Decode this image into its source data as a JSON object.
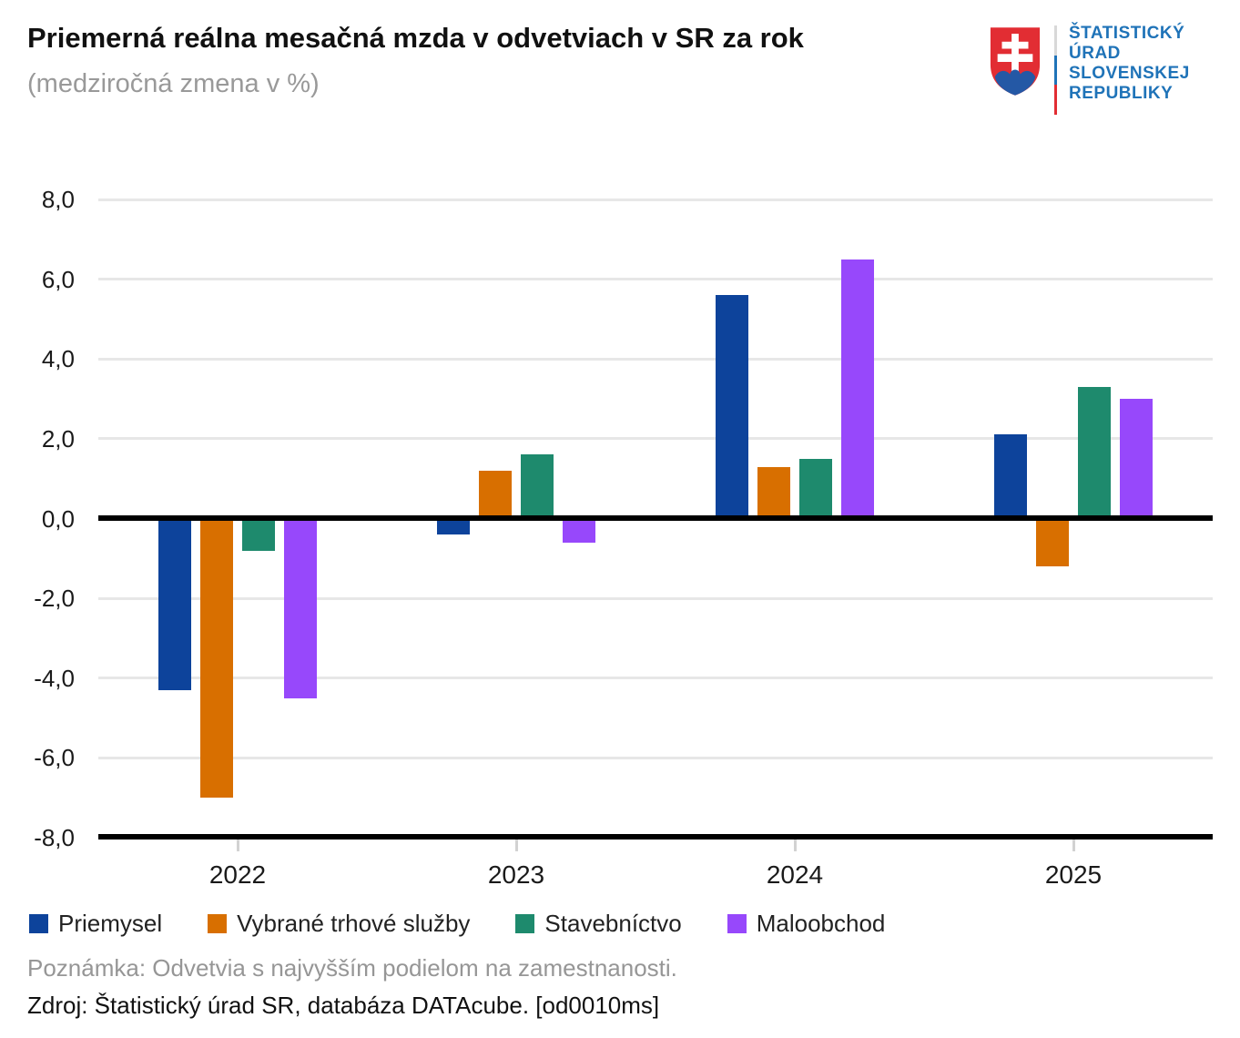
{
  "header": {
    "title": "Priemerná reálna mesačná mzda v odvetviach v SR za rok",
    "subtitle": "(medziročná zmena v %)",
    "logo": {
      "text_lines": [
        "ŠTATISTICKÝ",
        "ÚRAD",
        "SLOVENSKEJ",
        "REPUBLIKY"
      ],
      "text_color": "#1f73b8",
      "shield_red": "#e22d33",
      "hill_blue": "#2458a5",
      "cross_white": "#ffffff",
      "separator_colors": [
        "#d8d8d8",
        "#1f73b8",
        "#e22d33"
      ]
    }
  },
  "chart_data": {
    "type": "bar",
    "title": "Priemerná reálna mesačná mzda v odvetviach v SR za rok (medziročná zmena v %)",
    "categories": [
      "2022",
      "2023",
      "2024",
      "2025"
    ],
    "series": [
      {
        "name": "Priemysel",
        "slug": "priemysel",
        "color": "#0d439b",
        "values": [
          -4.3,
          -0.4,
          5.6,
          2.1
        ]
      },
      {
        "name": "Vybrané trhové služby",
        "slug": "vybrane-trhove-sluzby",
        "color": "#d86f00",
        "values": [
          -7.0,
          1.2,
          1.3,
          -1.2
        ]
      },
      {
        "name": "Stavebníctvo",
        "slug": "stavebnictvo",
        "color": "#1e8a6d",
        "values": [
          -0.8,
          1.6,
          1.5,
          3.3
        ]
      },
      {
        "name": "Maloobchod",
        "slug": "maloobchod",
        "color": "#9748fb",
        "values": [
          -4.5,
          -0.6,
          6.5,
          3.0
        ]
      }
    ],
    "xlabel": "",
    "ylabel": "",
    "ylim": [
      -8,
      8
    ],
    "ytick_step": 2,
    "ytick_labels": [
      "8,0",
      "6,0",
      "4,0",
      "2,0",
      "0,0",
      "-2,0",
      "-4,0",
      "-6,0",
      "-8,0"
    ],
    "grid": true,
    "zero_line": true,
    "legend_position": "bottom"
  },
  "footer": {
    "note": "Poznámka: Odvetvia s najvyšším podielom na zamestnanosti.",
    "source": "Zdroj: Štatistický úrad SR, databáza DATAcube. [od0010ms]"
  }
}
